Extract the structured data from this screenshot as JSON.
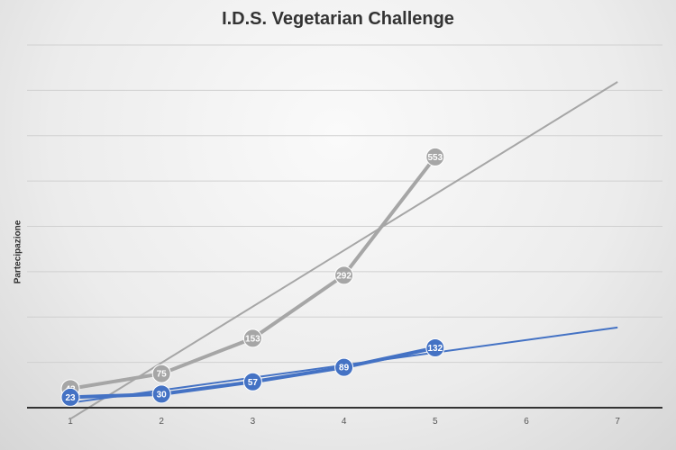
{
  "chart_data": {
    "type": "line",
    "title": "I.D.S. Vegetarian Challenge",
    "xlabel": "",
    "ylabel": "Partecipazione",
    "x_ticks": [
      "1",
      "2",
      "3",
      "4",
      "5",
      "6",
      "7"
    ],
    "xlim": [
      1,
      7
    ],
    "ylim": [
      0,
      800
    ],
    "y_grid_step": 100,
    "grid": true,
    "y_tick_labels_shown": false,
    "legend": "none",
    "series": [
      {
        "color": "#a6a6a6",
        "x": [
          1,
          2,
          3,
          4,
          5
        ],
        "values": [
          42,
          75,
          153,
          292,
          553
        ],
        "trendline": "linear",
        "data_labels": true
      },
      {
        "color": "#4472c4",
        "x": [
          1,
          2,
          3,
          4,
          5
        ],
        "values": [
          23,
          30,
          57,
          89,
          132
        ],
        "trendline": "linear",
        "data_labels": true
      }
    ]
  }
}
